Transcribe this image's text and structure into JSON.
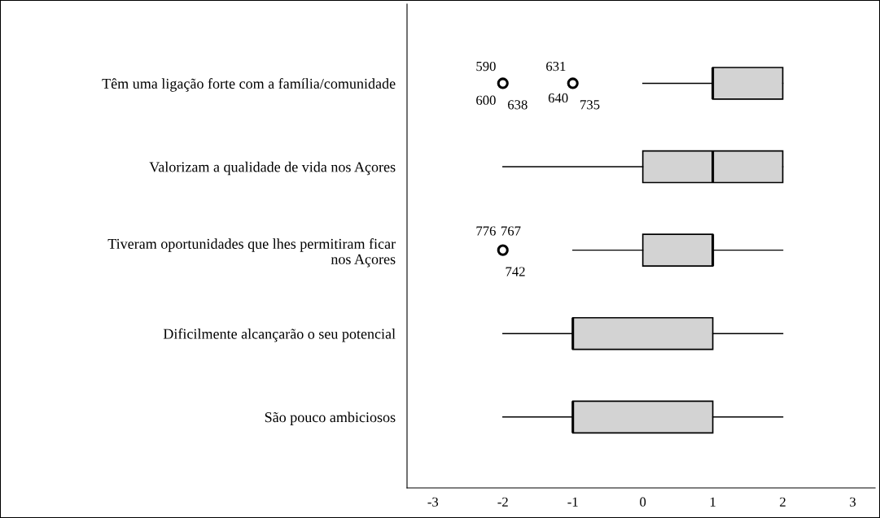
{
  "chart_data": {
    "type": "box",
    "orientation": "horizontal",
    "categories": [
      "Têm uma ligação forte com a família/comunidade",
      "Valorizam a qualidade de vida nos Açores",
      "Tiveram oportunidades que lhes permitiram ficar\nnos Açores",
      "Dificilmente alcançarão o seu potencial",
      "São pouco ambiciosos"
    ],
    "boxes": [
      {
        "low": 0,
        "q1": 1,
        "median": 1,
        "q3": 2,
        "high": 2,
        "outliers": [
          -2,
          -1
        ]
      },
      {
        "low": -2,
        "q1": 0,
        "median": 1,
        "q3": 2,
        "high": 2
      },
      {
        "low": -1,
        "q1": 0,
        "median": 1,
        "q3": 1,
        "high": 2,
        "outliers": [
          -2
        ]
      },
      {
        "low": -2,
        "q1": -1,
        "median": -1,
        "q3": 1,
        "high": 2
      },
      {
        "low": -2,
        "q1": -1,
        "median": -1,
        "q3": 1,
        "high": 2
      }
    ],
    "color": "#d3d3d3",
    "xlim": [
      -3.37,
      3.32
    ],
    "xticks": [
      -3,
      -2,
      -1,
      0,
      1,
      2,
      3
    ],
    "grid": false,
    "legend": false,
    "annotations": [
      "590",
      "600",
      "638",
      "631",
      "640",
      "735",
      "776",
      "767",
      "742"
    ]
  }
}
